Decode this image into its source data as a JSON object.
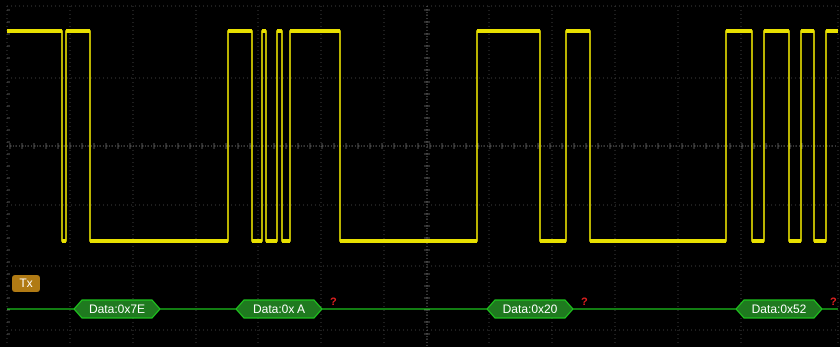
{
  "channel": {
    "label": "Tx"
  },
  "colors": {
    "trace": "#e8e000",
    "bus": "#1ec81e",
    "bus_fill": "#1f7a1f",
    "tag": "#b07a14",
    "grid": "#3c3c3c",
    "error": "#e02020"
  },
  "decodes": [
    {
      "text": "Data:0x7E",
      "error": ""
    },
    {
      "text": "Data:0x A",
      "error": "?"
    },
    {
      "text": "Data:0x20",
      "error": "?"
    },
    {
      "text": "Data:0x52",
      "error": "?"
    }
  ]
}
